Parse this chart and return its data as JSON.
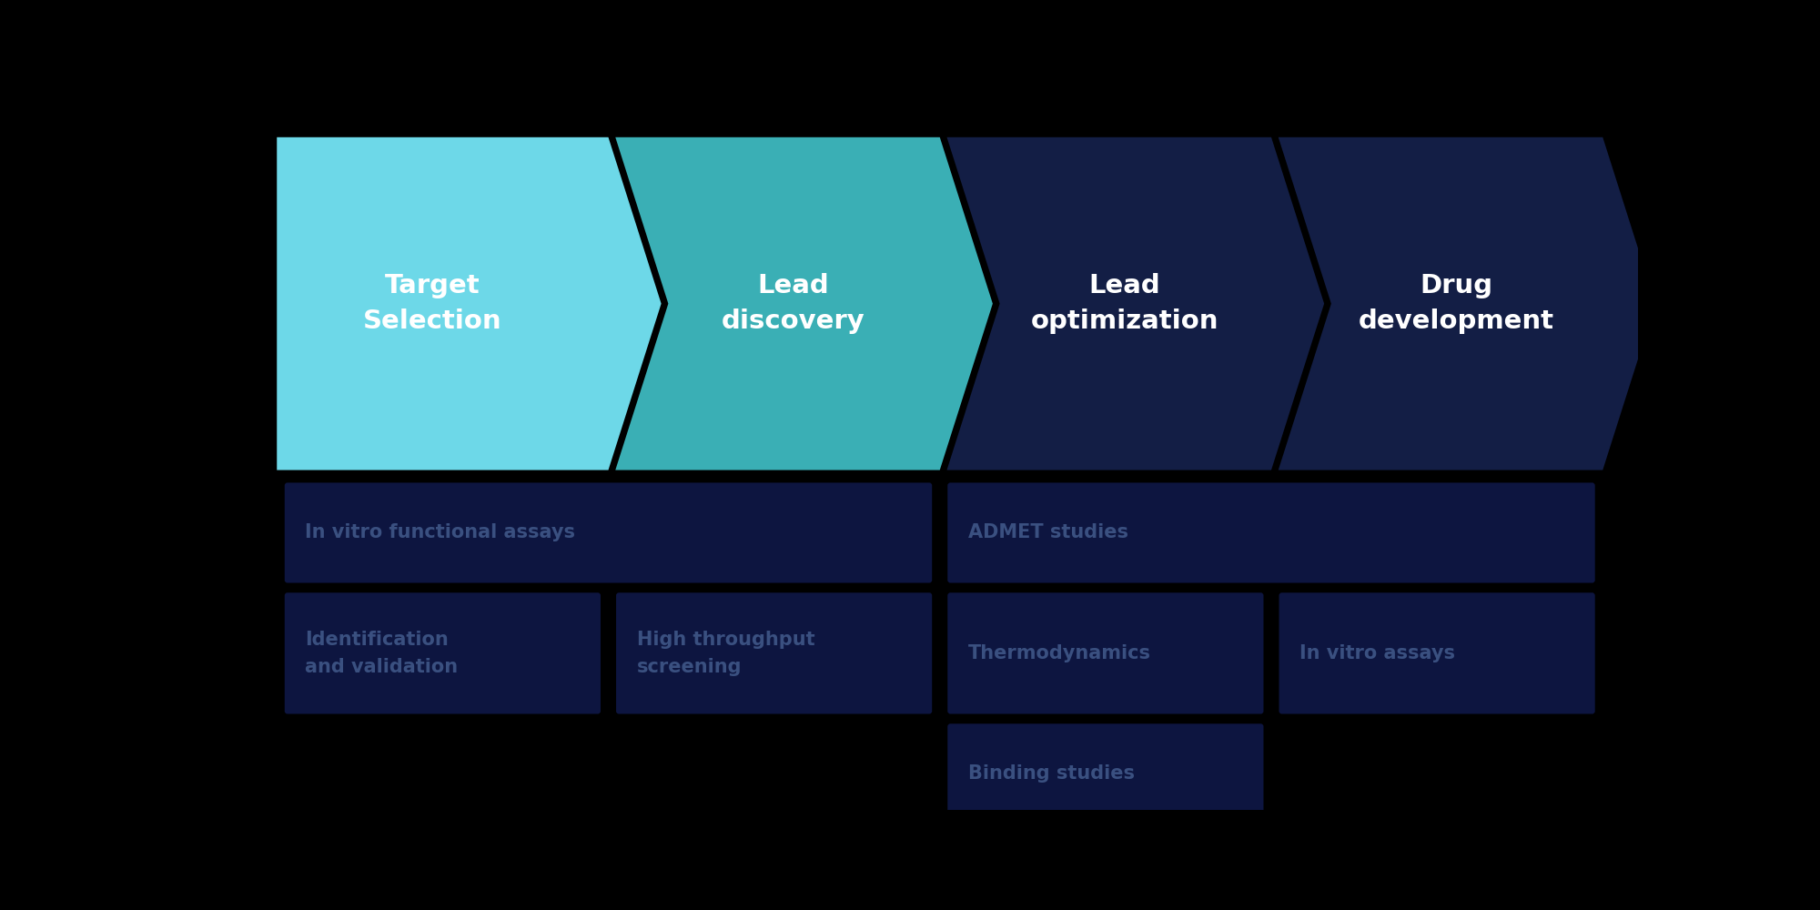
{
  "background_color": "#000000",
  "arrow_stages": [
    {
      "label": "Target\nSelection",
      "color": "#6dd8e8",
      "text_color": "#ffffff"
    },
    {
      "label": "Lead\ndiscovery",
      "color": "#3aafb5",
      "text_color": "#ffffff"
    },
    {
      "label": "Lead\noptimization",
      "color": "#131e45",
      "text_color": "#ffffff"
    },
    {
      "label": "Drug\ndevelopment",
      "color": "#131e45",
      "text_color": "#ffffff"
    }
  ],
  "box_color": "#0d1540",
  "box_text_color": "#3a5080",
  "boxes": [
    {
      "text": "In vitro functional assays",
      "col": 0,
      "row": 0,
      "colspan": 2
    },
    {
      "text": "Identification\nand validation",
      "col": 0,
      "row": 1,
      "colspan": 1
    },
    {
      "text": "High throughput\nscreening",
      "col": 1,
      "row": 1,
      "colspan": 1
    },
    {
      "text": "ADMET studies",
      "col": 2,
      "row": 0,
      "colspan": 2
    },
    {
      "text": "Thermodynamics",
      "col": 2,
      "row": 1,
      "colspan": 1
    },
    {
      "text": "In vitro assays",
      "col": 3,
      "row": 1,
      "colspan": 1
    },
    {
      "text": "Binding studies",
      "col": 2,
      "row": 2,
      "colspan": 1
    }
  ]
}
